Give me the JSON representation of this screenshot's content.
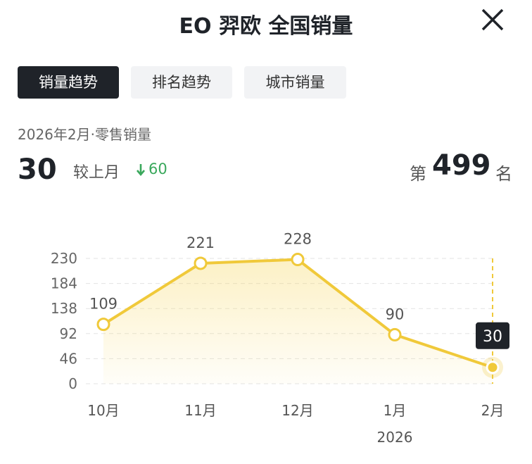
{
  "header": {
    "title": "EO 羿欧 全国销量"
  },
  "tabs": [
    "销量趋势",
    "排名趋势",
    "城市销量"
  ],
  "summary": {
    "period": "2026年2月·零售销量",
    "value": 30,
    "compare_label": "较上月",
    "change": 60,
    "rank_prefix": "第",
    "rank": 499,
    "rank_suffix": "名"
  },
  "chart_data": {
    "type": "line",
    "categories": [
      "10月",
      "11月",
      "12月",
      "1月",
      "2月"
    ],
    "category_sublabels": [
      null,
      null,
      null,
      "2026",
      null
    ],
    "series": [
      {
        "name": "零售销量",
        "color": "#f0c93a",
        "values": [
          109,
          221,
          228,
          90,
          30
        ]
      }
    ],
    "ylim": [
      0,
      230
    ],
    "yticks": [
      0,
      46,
      92,
      138,
      184,
      230
    ],
    "grid": true
  }
}
